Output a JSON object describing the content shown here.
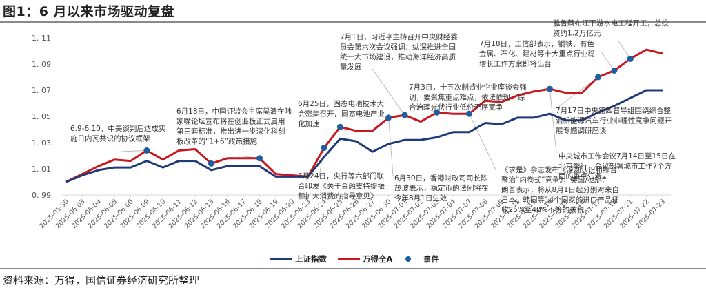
{
  "header": {
    "title": "图1：6 月以来市场驱动复盘"
  },
  "footer": {
    "source": "资料来源：万得，国信证券经济研究所整理"
  },
  "legend": {
    "items": [
      {
        "label": "上证指数",
        "color": "#1f3a78",
        "type": "line"
      },
      {
        "label": "万得全A",
        "color": "#c8171e",
        "type": "line"
      },
      {
        "label": "事件",
        "color": "#1f5fa0",
        "type": "dot"
      }
    ]
  },
  "chart_data": {
    "type": "line",
    "title": "图1：6 月以来市场驱动复盘",
    "xlabel": "",
    "ylabel": "",
    "ylim": [
      0.99,
      1.11
    ],
    "yticks": [
      "0.99",
      "1.01",
      "1.03",
      "1.05",
      "1.07",
      "1.09",
      "1.11"
    ],
    "grid": false,
    "legend_position": "bottom",
    "x": [
      "2025-05-30",
      "2025-06-03",
      "2025-06-04",
      "2025-06-05",
      "2025-06-06",
      "2025-06-09",
      "2025-06-10",
      "2025-06-11",
      "2025-06-12",
      "2025-06-13",
      "2025-06-16",
      "2025-06-17",
      "2025-06-18",
      "2025-06-19",
      "2025-06-20",
      "2025-06-23",
      "2025-06-24",
      "2025-06-25",
      "2025-06-26",
      "2025-06-27",
      "2025-06-30",
      "2025-07-01",
      "2025-07-02",
      "2025-07-03",
      "2025-07-04",
      "2025-07-07",
      "2025-07-08",
      "2025-07-09",
      "2025-07-10",
      "2025-07-11",
      "2025-07-14",
      "2025-07-15",
      "2025-07-16",
      "2025-07-17",
      "2025-07-18",
      "2025-07-21",
      "2025-07-22",
      "2025-07-23"
    ],
    "series": [
      {
        "name": "上证指数",
        "color": "#1f3a78",
        "values": [
          1.0,
          1.005,
          1.009,
          1.011,
          1.011,
          1.016,
          1.011,
          1.016,
          1.016,
          1.009,
          1.012,
          1.012,
          1.012,
          1.004,
          1.004,
          1.004,
          1.019,
          1.033,
          1.031,
          1.023,
          1.029,
          1.032,
          1.032,
          1.034,
          1.038,
          1.038,
          1.045,
          1.044,
          1.049,
          1.049,
          1.052,
          1.047,
          1.047,
          1.053,
          1.058,
          1.064,
          1.07,
          1.07
        ]
      },
      {
        "name": "万得全A",
        "color": "#c8171e",
        "values": [
          1.0,
          1.006,
          1.012,
          1.017,
          1.016,
          1.024,
          1.017,
          1.024,
          1.025,
          1.014,
          1.018,
          1.018,
          1.018,
          1.006,
          1.005,
          1.004,
          1.026,
          1.042,
          1.039,
          1.039,
          1.049,
          1.051,
          1.046,
          1.053,
          1.052,
          1.052,
          1.062,
          1.061,
          1.066,
          1.069,
          1.071,
          1.068,
          1.068,
          1.08,
          1.085,
          1.094,
          1.101,
          1.098
        ]
      }
    ],
    "events": [
      {
        "date": "2025-06-09",
        "value": 1.024,
        "text": "6.9-6.10，中美谈判后达成实施日内瓦共识的协议框架"
      },
      {
        "date": "2025-06-13",
        "value": 1.014,
        "text": ""
      },
      {
        "date": "2025-06-18",
        "value": 1.018,
        "text": "6月18日，中国证监会主席吴清在陆家嘴论坛宣布将在创业板正式启用第三套标准，推出进一步深化科创板改革的“1+6”政策措施"
      },
      {
        "date": "2025-06-24",
        "value": 1.026,
        "text": "6月24日，央行等六部门联合印发《关于金融支持提振和扩大消费的指导意见》"
      },
      {
        "date": "2025-06-25",
        "value": 1.042,
        "text": "6月25日，固态电池技术大会密集召开，固态电池产业化加速"
      },
      {
        "date": "2025-06-30",
        "value": 1.049,
        "text": "6月30日，香港财政司司长陈茂波表示，稳定币的法例将在今年8月1日生效"
      },
      {
        "date": "2025-07-01",
        "value": 1.051,
        "text": "7月1日，习近平主持召开中央财经委员会第六次会议强调：纵深推进全国统一大市场建设，推动海洋经济高质量发展"
      },
      {
        "date": "2025-07-03",
        "value": 1.053,
        "text": "7月3日，十五次制造业企业座谈会强调，要聚焦重点难点，依法依规、综合治理光伏行业低价无序竞争"
      },
      {
        "date": "2025-07-07",
        "value": 1.052,
        "text": "《求是》杂志发布《深刻认识和综合整治“内卷式”竞争》，美国总统特朗普表示，将从8月1日起分别对来自日本、韩国等14个国家的进口产品征收25%至40%不等的关税"
      },
      {
        "date": "2025-07-14",
        "value": 1.071,
        "text": "中央城市工作会议7月14日至15日在北京举行，会议部署城市工作7个方面的重点任务"
      },
      {
        "date": "2025-07-17",
        "value": 1.08,
        "text": "7月17日中央第四督导组围绕综合整治新能源汽车行业非理性竞争问题开展专题调研座谈"
      },
      {
        "date": "2025-07-18",
        "value": 1.085,
        "text": "7月18日，工信部表示，钢铁、有色金属、石化、建材等十大重点行业稳增长工作方案即将出台"
      },
      {
        "date": "2025-07-21",
        "value": 1.094,
        "text": "雅鲁藏布江下游水电工程开工，总投资约1.2万亿元"
      }
    ]
  },
  "annotations": {
    "a1": [
      "6.9-6.10，中美谈判后达成实",
      "施日内瓦共识的协议框架"
    ],
    "a2": [
      "6月18日，中国证监会主席吴清在陆",
      "家嘴论坛宣布将在创业板正式启用",
      "第三套标准，推出进一步深化科创",
      "板改革的“1+6”政策措施"
    ],
    "a3": [
      "6月24日，央行等六部门联",
      "合印发《关于金融支持提振",
      "和扩大消费的指导意见》"
    ],
    "a4": [
      "6月25日，固态电池技术大",
      "会密集召开，固态电池产业",
      "化加速"
    ],
    "a5": [
      "7月1日，习近平主持召开中央财经委",
      "员会第六次会议强调：纵深推进全国",
      "统一大市场建设，推动海洋经济高质",
      "量发展"
    ],
    "a6": [
      "6月30日，香港财政司司长陈",
      "茂波表示，稳定币的法例将在",
      "今年8月1日生效"
    ],
    "a7": [
      "7月3日，十五次制造业企业座谈会强",
      "调，要聚焦重点难点，依法依规、综",
      "合治理光伏行业低价无序竞争"
    ],
    "a8": [
      "《求是》杂志发布《深刻认识和综合",
      "整治“内卷式”竞争》，美国总统特",
      "朗普表示，将从8月1日起分别对来自",
      "日本、韩国等14个国家的进口产品征",
      "收25%至40%不等的关税"
    ],
    "a9": [
      "中央城市工作会议7月14日至15日在",
      "北京举行，会议部署城市工作7个方",
      "面的重点任务"
    ],
    "a10": [
      "7月17日中央第四督导组围绕综合整",
      "治新能源汽车行业非理性竞争问题开",
      "展专题调研座谈"
    ],
    "a11": [
      "7月18日，工信部表示，钢铁、有色",
      "金属、石化、建材等十大重点行业稳",
      "增长工作方案即将出台"
    ],
    "a12": [
      "雅鲁藏布江下游水电工程开工，总投",
      "资约1.2万亿元"
    ]
  }
}
